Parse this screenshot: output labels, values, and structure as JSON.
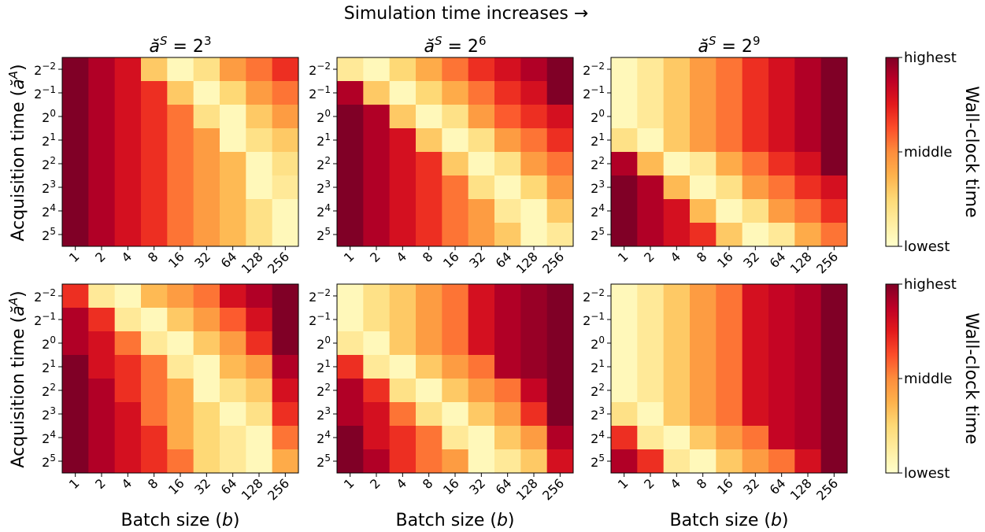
{
  "figure_title": "Simulation time increases →",
  "rows": [
    {
      "ylabel_text": "Acquisition time (",
      "ylabel_symbol": "ă",
      "ylabel_sup": "A",
      "ylabel_close": ")",
      "xlabel": ""
    },
    {
      "ylabel_text": "Acquisition time (",
      "ylabel_symbol": "ă",
      "ylabel_sup": "A",
      "ylabel_close": ")",
      "xlabel_text": "Batch size (",
      "xlabel_symbol": "b",
      "xlabel_close": ")"
    }
  ],
  "column_titles": [
    {
      "base": "ă",
      "sup": "S",
      "eq": " = 2",
      "exp": "3"
    },
    {
      "base": "ă",
      "sup": "S",
      "eq": " = 2",
      "exp": "6"
    },
    {
      "base": "ă",
      "sup": "S",
      "eq": " = 2",
      "exp": "9"
    }
  ],
  "x_ticks": [
    "1",
    "2",
    "4",
    "8",
    "16",
    "32",
    "64",
    "128",
    "256"
  ],
  "y_ticks": [
    {
      "base": "2",
      "exp": "−2"
    },
    {
      "base": "2",
      "exp": "−1"
    },
    {
      "base": "2",
      "exp": "0"
    },
    {
      "base": "2",
      "exp": "1"
    },
    {
      "base": "2",
      "exp": "2"
    },
    {
      "base": "2",
      "exp": "3"
    },
    {
      "base": "2",
      "exp": "4"
    },
    {
      "base": "2",
      "exp": "5"
    }
  ],
  "colorbar": {
    "label": "Wall-clock time",
    "tick_top": "highest",
    "tick_mid": "middle",
    "tick_bottom": "lowest",
    "colormap": [
      "#ffffcc",
      "#ffeda0",
      "#fed976",
      "#feb24c",
      "#fd8d3c",
      "#fc4e2a",
      "#e31a1c",
      "#bd0026",
      "#800026"
    ]
  },
  "chart_data": {
    "type": "heatmap",
    "value_scale": "normalized 0 (lowest) to 1 (highest) wall-clock time",
    "x_categories": [
      "1",
      "2",
      "4",
      "8",
      "16",
      "32",
      "64",
      "128",
      "256"
    ],
    "y_categories": [
      "2^-2",
      "2^-1",
      "2^0",
      "2^1",
      "2^2",
      "2^3",
      "2^4",
      "2^5"
    ],
    "panels": [
      {
        "row": 0,
        "col": 0,
        "title": "ă^S = 2^3",
        "values": [
          [
            1.0,
            0.9,
            0.8,
            0.3,
            0.05,
            0.2,
            0.45,
            0.55,
            0.7
          ],
          [
            1.0,
            0.9,
            0.8,
            0.7,
            0.3,
            0.05,
            0.25,
            0.45,
            0.55
          ],
          [
            1.0,
            0.9,
            0.8,
            0.7,
            0.55,
            0.2,
            0.05,
            0.3,
            0.45
          ],
          [
            1.0,
            0.9,
            0.8,
            0.7,
            0.55,
            0.45,
            0.05,
            0.2,
            0.3
          ],
          [
            1.0,
            0.9,
            0.8,
            0.7,
            0.55,
            0.45,
            0.35,
            0.05,
            0.2
          ],
          [
            1.0,
            0.9,
            0.8,
            0.7,
            0.55,
            0.45,
            0.35,
            0.05,
            0.15
          ],
          [
            1.0,
            0.9,
            0.8,
            0.7,
            0.55,
            0.45,
            0.35,
            0.2,
            0.05
          ],
          [
            1.0,
            0.9,
            0.8,
            0.7,
            0.55,
            0.45,
            0.35,
            0.2,
            0.05
          ]
        ]
      },
      {
        "row": 0,
        "col": 1,
        "title": "ă^S = 2^6",
        "values": [
          [
            0.15,
            0.05,
            0.25,
            0.4,
            0.55,
            0.7,
            0.8,
            0.9,
            1.0
          ],
          [
            0.9,
            0.3,
            0.05,
            0.25,
            0.4,
            0.55,
            0.7,
            0.8,
            1.0
          ],
          [
            1.0,
            0.9,
            0.3,
            0.05,
            0.2,
            0.45,
            0.6,
            0.7,
            0.8
          ],
          [
            1.0,
            0.9,
            0.8,
            0.3,
            0.05,
            0.2,
            0.45,
            0.55,
            0.7
          ],
          [
            1.0,
            0.9,
            0.8,
            0.7,
            0.3,
            0.05,
            0.2,
            0.45,
            0.55
          ],
          [
            1.0,
            0.9,
            0.8,
            0.7,
            0.55,
            0.2,
            0.05,
            0.25,
            0.45
          ],
          [
            1.0,
            0.9,
            0.8,
            0.7,
            0.55,
            0.45,
            0.15,
            0.05,
            0.3
          ],
          [
            1.0,
            0.9,
            0.8,
            0.7,
            0.55,
            0.45,
            0.3,
            0.05,
            0.15
          ]
        ]
      },
      {
        "row": 0,
        "col": 2,
        "title": "ă^S = 2^9",
        "values": [
          [
            0.05,
            0.15,
            0.3,
            0.45,
            0.55,
            0.7,
            0.8,
            0.9,
            1.0
          ],
          [
            0.05,
            0.15,
            0.3,
            0.45,
            0.55,
            0.7,
            0.8,
            0.9,
            1.0
          ],
          [
            0.05,
            0.15,
            0.3,
            0.45,
            0.55,
            0.7,
            0.8,
            0.9,
            1.0
          ],
          [
            0.2,
            0.05,
            0.3,
            0.45,
            0.55,
            0.7,
            0.8,
            0.9,
            1.0
          ],
          [
            0.9,
            0.35,
            0.05,
            0.15,
            0.4,
            0.55,
            0.7,
            0.8,
            1.0
          ],
          [
            1.0,
            0.9,
            0.35,
            0.05,
            0.2,
            0.45,
            0.55,
            0.7,
            0.8
          ],
          [
            1.0,
            0.9,
            0.8,
            0.35,
            0.05,
            0.2,
            0.45,
            0.55,
            0.7
          ],
          [
            1.0,
            0.9,
            0.8,
            0.7,
            0.3,
            0.05,
            0.15,
            0.4,
            0.55
          ]
        ]
      },
      {
        "row": 1,
        "col": 0,
        "title": "",
        "values": [
          [
            0.7,
            0.15,
            0.05,
            0.35,
            0.45,
            0.55,
            0.8,
            0.9,
            1.0
          ],
          [
            0.9,
            0.7,
            0.15,
            0.05,
            0.3,
            0.45,
            0.6,
            0.8,
            1.0
          ],
          [
            0.9,
            0.8,
            0.55,
            0.15,
            0.05,
            0.3,
            0.45,
            0.7,
            1.0
          ],
          [
            1.0,
            0.8,
            0.7,
            0.55,
            0.15,
            0.05,
            0.35,
            0.45,
            0.9
          ],
          [
            1.0,
            0.9,
            0.7,
            0.55,
            0.4,
            0.05,
            0.2,
            0.3,
            0.8
          ],
          [
            1.0,
            0.9,
            0.8,
            0.55,
            0.4,
            0.25,
            0.05,
            0.2,
            0.7
          ],
          [
            1.0,
            0.9,
            0.8,
            0.7,
            0.4,
            0.25,
            0.15,
            0.05,
            0.55
          ],
          [
            1.0,
            0.9,
            0.8,
            0.7,
            0.55,
            0.25,
            0.15,
            0.05,
            0.4
          ]
        ]
      },
      {
        "row": 1,
        "col": 1,
        "title": "",
        "values": [
          [
            0.05,
            0.2,
            0.3,
            0.45,
            0.55,
            0.8,
            0.9,
            0.95,
            1.0
          ],
          [
            0.05,
            0.2,
            0.3,
            0.45,
            0.55,
            0.8,
            0.9,
            0.95,
            1.0
          ],
          [
            0.15,
            0.05,
            0.3,
            0.45,
            0.55,
            0.8,
            0.9,
            0.95,
            1.0
          ],
          [
            0.7,
            0.15,
            0.05,
            0.3,
            0.45,
            0.55,
            0.9,
            0.95,
            1.0
          ],
          [
            0.9,
            0.7,
            0.2,
            0.05,
            0.3,
            0.45,
            0.55,
            0.85,
            1.0
          ],
          [
            0.9,
            0.8,
            0.55,
            0.2,
            0.05,
            0.3,
            0.45,
            0.7,
            1.0
          ],
          [
            1.0,
            0.8,
            0.7,
            0.55,
            0.15,
            0.05,
            0.3,
            0.45,
            0.9
          ],
          [
            1.0,
            0.9,
            0.7,
            0.55,
            0.45,
            0.05,
            0.15,
            0.3,
            0.8
          ]
        ]
      },
      {
        "row": 1,
        "col": 2,
        "title": "",
        "values": [
          [
            0.05,
            0.15,
            0.3,
            0.45,
            0.55,
            0.8,
            0.85,
            0.9,
            1.0
          ],
          [
            0.05,
            0.15,
            0.3,
            0.45,
            0.55,
            0.8,
            0.85,
            0.9,
            1.0
          ],
          [
            0.05,
            0.15,
            0.3,
            0.45,
            0.55,
            0.8,
            0.85,
            0.9,
            1.0
          ],
          [
            0.05,
            0.15,
            0.3,
            0.45,
            0.55,
            0.8,
            0.85,
            0.9,
            1.0
          ],
          [
            0.05,
            0.15,
            0.3,
            0.45,
            0.55,
            0.8,
            0.85,
            0.9,
            1.0
          ],
          [
            0.2,
            0.05,
            0.3,
            0.45,
            0.55,
            0.8,
            0.85,
            0.9,
            1.0
          ],
          [
            0.7,
            0.15,
            0.05,
            0.3,
            0.45,
            0.55,
            0.85,
            0.9,
            1.0
          ],
          [
            0.9,
            0.7,
            0.15,
            0.05,
            0.3,
            0.45,
            0.55,
            0.8,
            1.0
          ]
        ]
      }
    ]
  }
}
